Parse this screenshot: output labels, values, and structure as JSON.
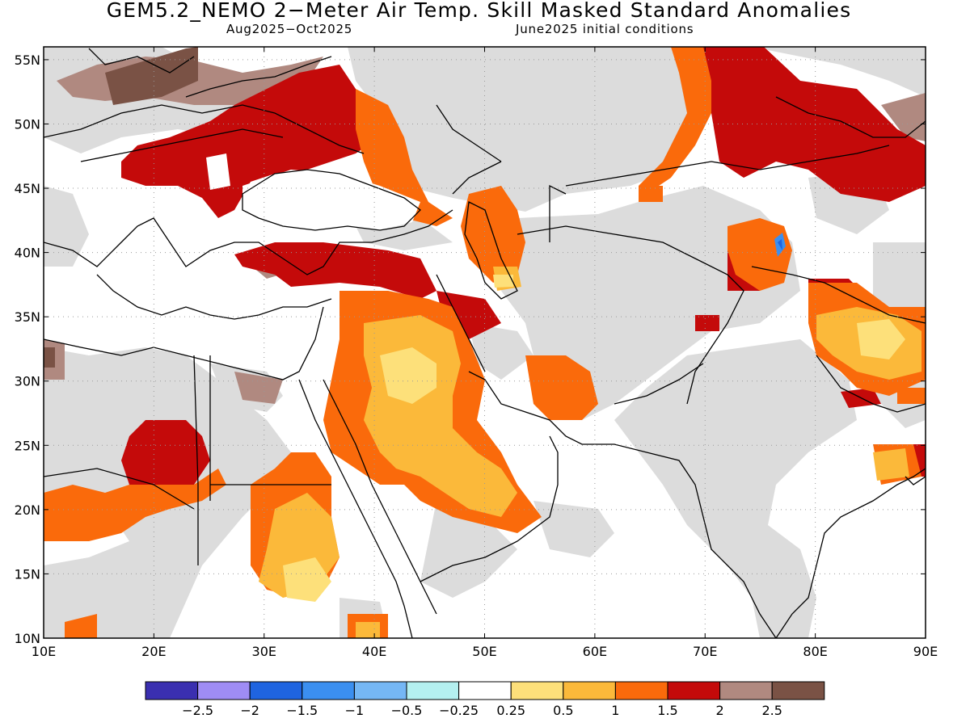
{
  "title": "GEM5.2_NEMO 2−Meter Air Temp. Skill Masked Standard Anomalies",
  "subtitle_left": "Aug2025−Oct2025",
  "subtitle_right": "June2025 initial conditions",
  "lat_labels": [
    "55N",
    "50N",
    "45N",
    "40N",
    "35N",
    "30N",
    "25N",
    "20N",
    "15N",
    "10N"
  ],
  "lat_values": [
    55,
    50,
    45,
    40,
    35,
    30,
    25,
    20,
    15,
    10
  ],
  "lon_labels": [
    "10E",
    "20E",
    "30E",
    "40E",
    "50E",
    "60E",
    "70E",
    "80E",
    "90E"
  ],
  "lon_values": [
    10,
    20,
    30,
    40,
    50,
    60,
    70,
    80,
    90
  ],
  "map_extent": {
    "lon_min": 10,
    "lon_max": 90,
    "lat_min": 10,
    "lat_max": 56
  },
  "colorbar": {
    "colors": [
      "#3a2fb0",
      "#9f8cf5",
      "#1f64e0",
      "#3b8ff0",
      "#75b7f5",
      "#b4f0f0",
      "#ffffff",
      "#fde07a",
      "#fbb93a",
      "#fa6a0b",
      "#c40a0a",
      "#b08980",
      "#7a5245"
    ],
    "labels": [
      "−2.5",
      "−2",
      "−1.5",
      "−1",
      "−0.5",
      "−0.25",
      "0.25",
      "0.5",
      "1",
      "1.5",
      "2",
      "2.5"
    ]
  },
  "legend_colors": {
    "masked": "#dcdcdc",
    "neutral": "#ffffff",
    "warm1": "#fde07a",
    "warm2": "#fbb93a",
    "warm3": "#fa6a0b",
    "warm4": "#c40a0a",
    "warm5": "#b08980",
    "warm6": "#7a5245",
    "cold": "#3b8ff0"
  }
}
